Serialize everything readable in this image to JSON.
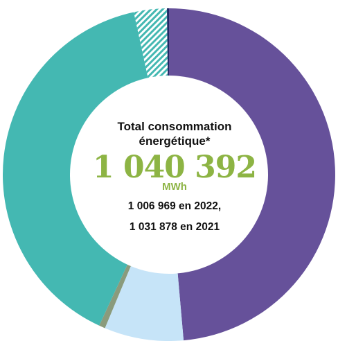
{
  "chart_data": {
    "type": "pie",
    "title": "",
    "slices": [
      {
        "value": 48.6,
        "color": "#66519a"
      },
      {
        "value": 7.7,
        "color": "#c6e4f8"
      },
      {
        "value": 0.6,
        "color": "#8a9b7c"
      },
      {
        "value": 39.7,
        "color": "#44b8b2"
      },
      {
        "value": 3.2,
        "color": "#44b8b2",
        "pattern": "hatched"
      },
      {
        "value": 0.2,
        "color": "#1f2a66"
      }
    ],
    "center": {
      "title_line1": "Total consommation",
      "title_line2": "énergétique*",
      "total": "1 040 392",
      "unit": "MWh",
      "comparison_line1": "1 006 969 en 2022,",
      "comparison_line2": "1 031 878 en 2021"
    }
  }
}
